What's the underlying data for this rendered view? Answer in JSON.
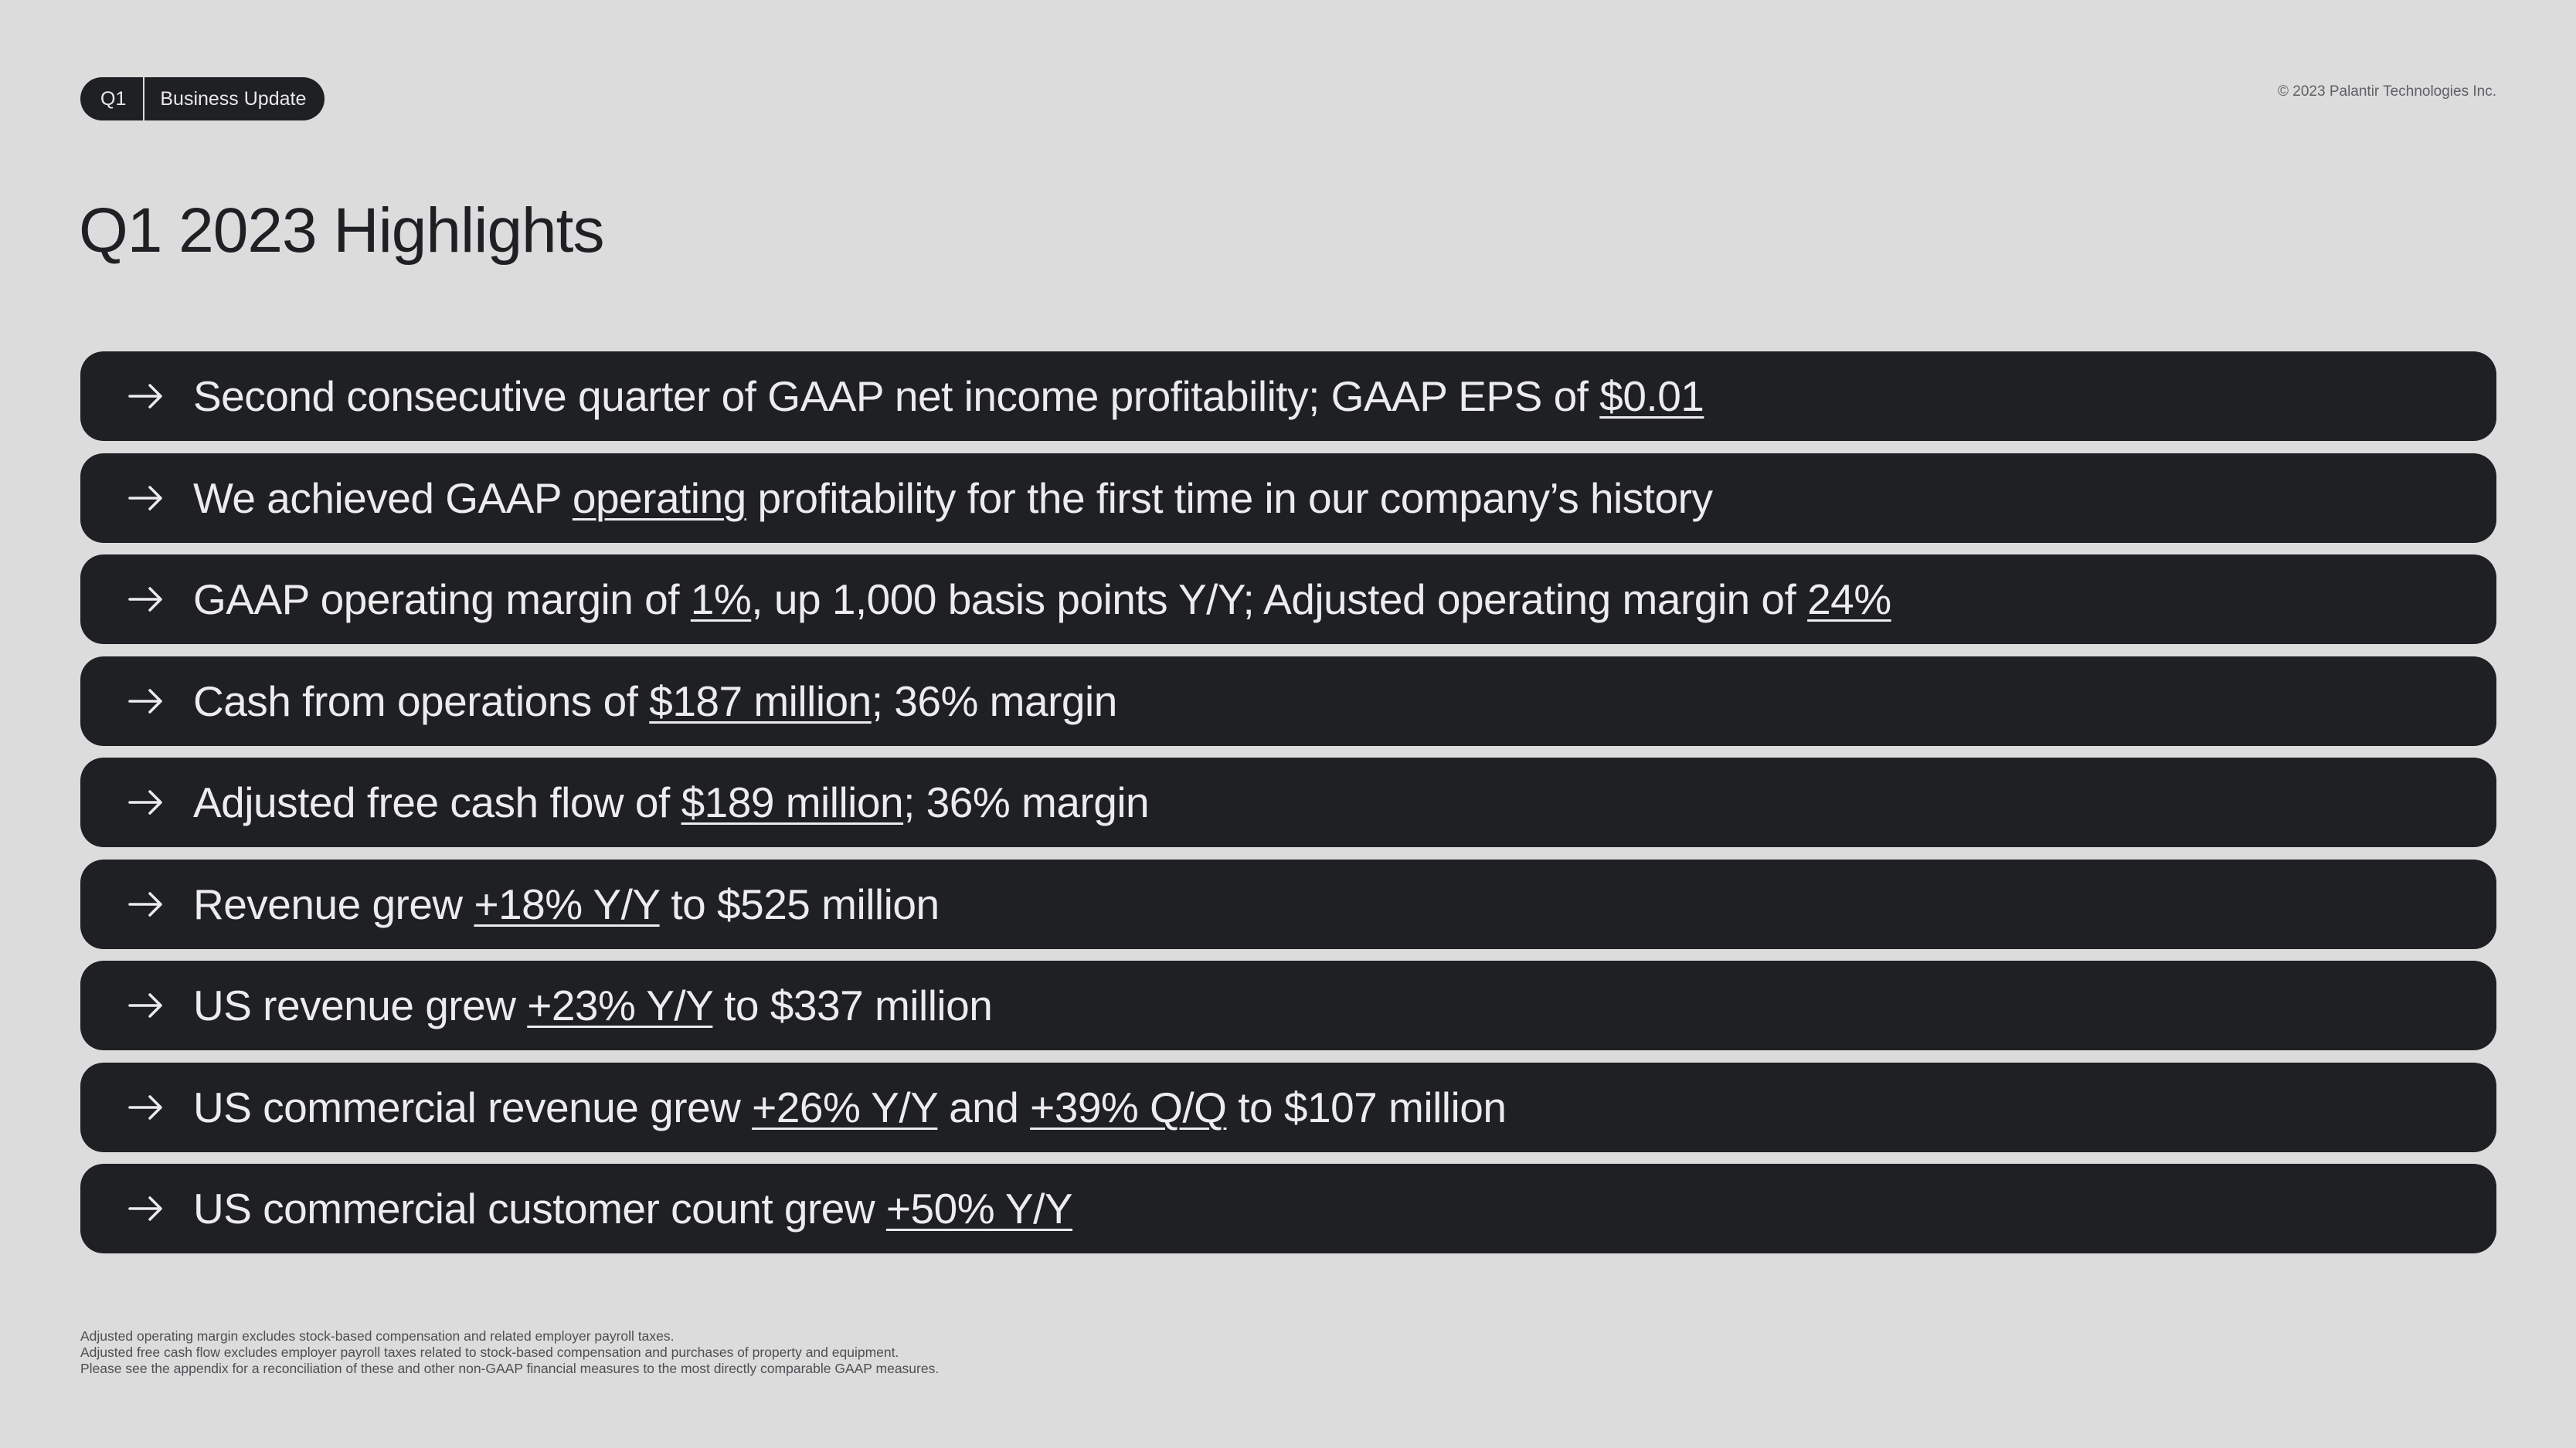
{
  "header": {
    "quarter_tag": "Q1",
    "section_tag": "Business Update",
    "copyright": "© 2023 Palantir Technologies Inc."
  },
  "title": "Q1 2023 Highlights",
  "highlights": [
    {
      "parts": [
        {
          "t": "Second consecutive quarter of GAAP net income profitability; GAAP EPS of ",
          "u": false
        },
        {
          "t": "$0.01",
          "u": true
        }
      ]
    },
    {
      "parts": [
        {
          "t": "We achieved GAAP ",
          "u": false
        },
        {
          "t": "operating",
          "u": true
        },
        {
          "t": " profitability for the first time in our company’s history",
          "u": false
        }
      ]
    },
    {
      "parts": [
        {
          "t": "GAAP operating margin of ",
          "u": false
        },
        {
          "t": "1%",
          "u": true
        },
        {
          "t": ", up 1,000 basis points Y/Y; Adjusted operating margin of ",
          "u": false
        },
        {
          "t": "24%",
          "u": true
        }
      ]
    },
    {
      "parts": [
        {
          "t": "Cash from operations of ",
          "u": false
        },
        {
          "t": "$187 million",
          "u": true
        },
        {
          "t": "; 36% margin",
          "u": false
        }
      ]
    },
    {
      "parts": [
        {
          "t": "Adjusted free cash flow of ",
          "u": false
        },
        {
          "t": "$189 million",
          "u": true
        },
        {
          "t": "; 36% margin",
          "u": false
        }
      ]
    },
    {
      "parts": [
        {
          "t": "Revenue grew ",
          "u": false
        },
        {
          "t": "+18% Y/Y",
          "u": true
        },
        {
          "t": " to $525 million",
          "u": false
        }
      ]
    },
    {
      "parts": [
        {
          "t": "US revenue grew ",
          "u": false
        },
        {
          "t": "+23% Y/Y",
          "u": true
        },
        {
          "t": " to $337 million",
          "u": false
        }
      ]
    },
    {
      "parts": [
        {
          "t": "US commercial revenue grew ",
          "u": false
        },
        {
          "t": "+26% Y/Y",
          "u": true
        },
        {
          "t": " and ",
          "u": false
        },
        {
          "t": "+39% Q/Q",
          "u": true
        },
        {
          "t": " to $107 million",
          "u": false
        }
      ]
    },
    {
      "parts": [
        {
          "t": "US commercial customer count grew ",
          "u": false
        },
        {
          "t": "+50% Y/Y",
          "u": true
        }
      ]
    }
  ],
  "footnotes": [
    "Adjusted operating margin excludes stock-based compensation and related employer payroll taxes.",
    "Adjusted free cash flow excludes employer payroll taxes related to stock-based compensation and purchases of property and equipment.",
    "Please see the appendix for a reconciliation of these and other non-GAAP financial measures to the most directly comparable GAAP measures."
  ],
  "icons": {
    "bullet": "arrow-right-icon"
  },
  "colors": {
    "background": "#dcdcdc",
    "pill": "#1f2024",
    "pill_text": "#ececec"
  }
}
